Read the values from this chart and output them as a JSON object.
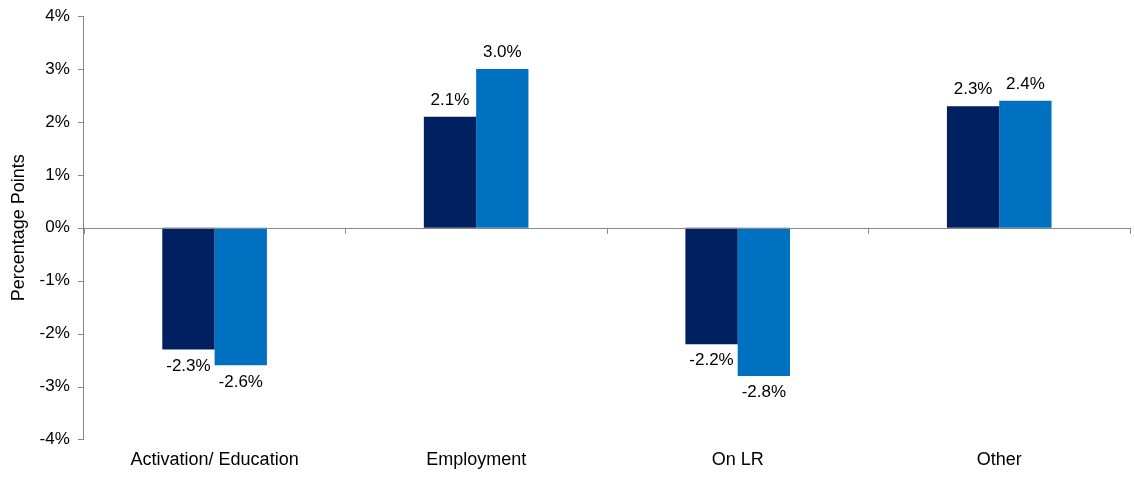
{
  "chart_data": {
    "type": "bar",
    "ylabel": "Percentage Points",
    "categories": [
      "Activation/ Education",
      "Employment",
      "On LR",
      "Other"
    ],
    "series": [
      {
        "color": "#002060",
        "values": [
          -2.3,
          2.1,
          -2.2,
          2.3
        ],
        "value_labels": [
          "-2.3%",
          "2.1%",
          "-2.2%",
          "2.3%"
        ]
      },
      {
        "color": "#0070c0",
        "values": [
          -2.6,
          3.0,
          -2.8,
          2.4
        ],
        "value_labels": [
          "-2.6%",
          "3.0%",
          "-2.8%",
          "2.4%"
        ]
      }
    ],
    "ylim": [
      -4,
      4
    ],
    "yticks": [
      {
        "value": -4,
        "label": "-4%"
      },
      {
        "value": -3,
        "label": "-3%"
      },
      {
        "value": -2,
        "label": "-2%"
      },
      {
        "value": -1,
        "label": "-1%"
      },
      {
        "value": 0,
        "label": "0%"
      },
      {
        "value": 1,
        "label": "1%"
      },
      {
        "value": 2,
        "label": "2%"
      },
      {
        "value": 3,
        "label": "3%"
      },
      {
        "value": 4,
        "label": "4%"
      }
    ],
    "ref_lines": [
      {
        "axis": "y",
        "value": 0,
        "color": "#888888"
      }
    ],
    "grid": false,
    "legend": false
  }
}
